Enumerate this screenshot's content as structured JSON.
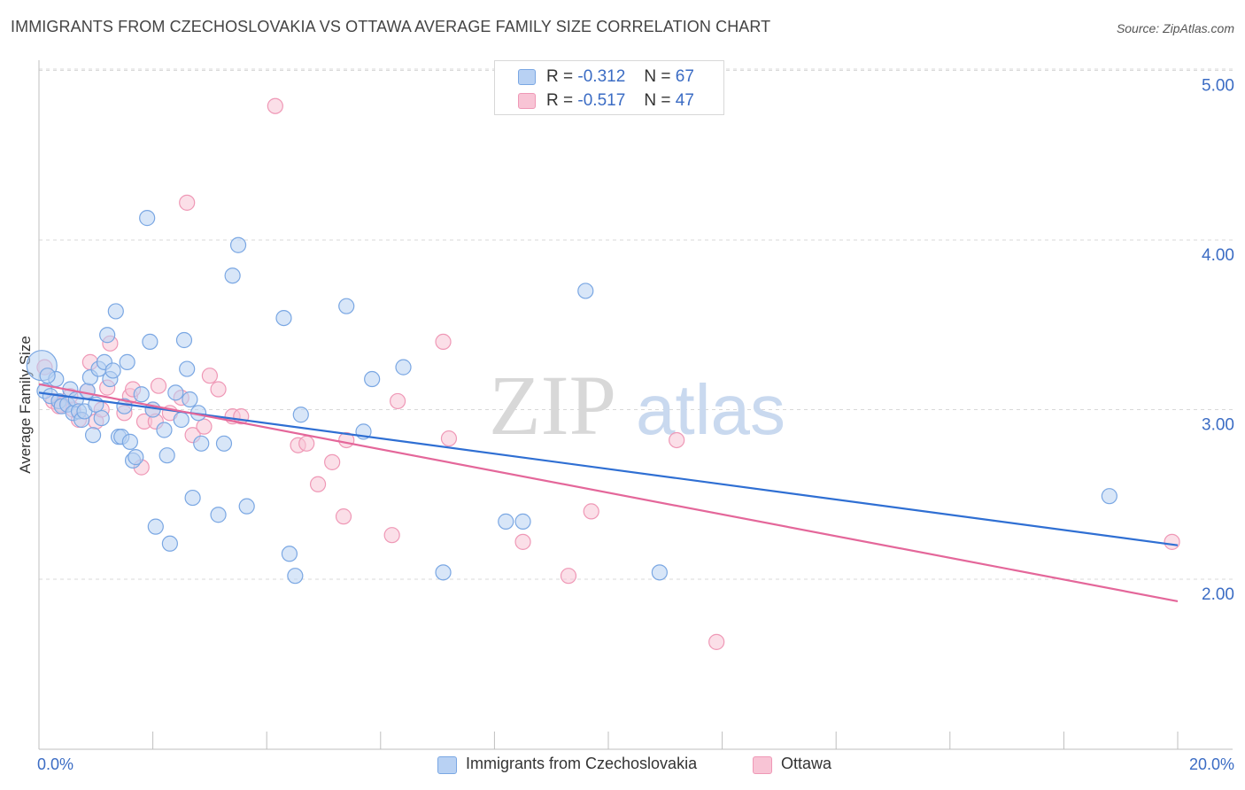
{
  "title": "IMMIGRANTS FROM CZECHOSLOVAKIA VS OTTAWA AVERAGE FAMILY SIZE CORRELATION CHART",
  "source": "Source: ZipAtlas.com",
  "watermark": {
    "zip": "ZIP",
    "atlas": "atlas"
  },
  "legend": {
    "rows": [
      {
        "r_label": "R =",
        "r_value": "-0.312",
        "n_label": "N =",
        "n_value": "67"
      },
      {
        "r_label": "R =",
        "r_value": "-0.517",
        "n_label": "N =",
        "n_value": "47"
      }
    ]
  },
  "colors": {
    "blue_fill": "#b8d1f3",
    "blue_stroke": "#7aa7e3",
    "blue_line": "#2f6fd3",
    "pink_fill": "#f8c4d5",
    "pink_stroke": "#ef98b6",
    "pink_line": "#e4679a",
    "accent_text": "#3b6cc4",
    "grid": "#d9d9d9"
  },
  "chart_data": {
    "type": "scatter",
    "title": "IMMIGRANTS FROM CZECHOSLOVAKIA VS OTTAWA AVERAGE FAMILY SIZE CORRELATION CHART",
    "xlabel": "",
    "ylabel": "Average Family Size",
    "xlim": [
      0,
      20
    ],
    "ylim": [
      1.0,
      5.1
    ],
    "x_tick_labels": [
      "0.0%",
      "20.0%"
    ],
    "y_ticks": [
      2.0,
      3.0,
      4.0,
      5.0
    ],
    "y_tick_labels": [
      "2.00",
      "3.00",
      "4.00",
      "5.00"
    ],
    "grid": true,
    "legend_position": "top-center",
    "series": [
      {
        "name": "Immigrants from Czechoslovakia",
        "color": "#7aa7e3",
        "trend": {
          "x": [
            0,
            20
          ],
          "y": [
            3.1,
            2.2
          ]
        },
        "points": [
          {
            "x": 0.05,
            "y": 3.26,
            "big": true
          },
          {
            "x": 0.1,
            "y": 3.11
          },
          {
            "x": 0.2,
            "y": 3.08
          },
          {
            "x": 0.3,
            "y": 3.18
          },
          {
            "x": 0.35,
            "y": 3.05
          },
          {
            "x": 0.4,
            "y": 3.02
          },
          {
            "x": 0.5,
            "y": 3.03
          },
          {
            "x": 0.55,
            "y": 3.12
          },
          {
            "x": 0.6,
            "y": 2.98
          },
          {
            "x": 0.65,
            "y": 3.06
          },
          {
            "x": 0.7,
            "y": 2.99
          },
          {
            "x": 0.75,
            "y": 2.94
          },
          {
            "x": 0.8,
            "y": 2.99
          },
          {
            "x": 0.85,
            "y": 3.11
          },
          {
            "x": 0.9,
            "y": 3.19
          },
          {
            "x": 0.95,
            "y": 2.85
          },
          {
            "x": 1.0,
            "y": 3.03
          },
          {
            "x": 1.05,
            "y": 3.24
          },
          {
            "x": 1.1,
            "y": 2.95
          },
          {
            "x": 1.15,
            "y": 3.28
          },
          {
            "x": 1.2,
            "y": 3.44
          },
          {
            "x": 1.25,
            "y": 3.18
          },
          {
            "x": 1.3,
            "y": 3.23
          },
          {
            "x": 1.35,
            "y": 3.58
          },
          {
            "x": 1.4,
            "y": 2.84
          },
          {
            "x": 1.45,
            "y": 2.84
          },
          {
            "x": 1.5,
            "y": 3.02
          },
          {
            "x": 1.55,
            "y": 3.28
          },
          {
            "x": 1.6,
            "y": 2.81
          },
          {
            "x": 1.65,
            "y": 2.7
          },
          {
            "x": 1.7,
            "y": 2.72
          },
          {
            "x": 1.8,
            "y": 3.09
          },
          {
            "x": 1.9,
            "y": 4.13
          },
          {
            "x": 1.95,
            "y": 3.4
          },
          {
            "x": 2.0,
            "y": 3.0
          },
          {
            "x": 2.05,
            "y": 2.31
          },
          {
            "x": 2.2,
            "y": 2.88
          },
          {
            "x": 2.25,
            "y": 2.73
          },
          {
            "x": 2.3,
            "y": 2.21
          },
          {
            "x": 2.4,
            "y": 3.1
          },
          {
            "x": 2.5,
            "y": 2.94
          },
          {
            "x": 2.55,
            "y": 3.41
          },
          {
            "x": 2.6,
            "y": 3.24
          },
          {
            "x": 2.65,
            "y": 3.06
          },
          {
            "x": 2.7,
            "y": 2.48
          },
          {
            "x": 2.8,
            "y": 2.98
          },
          {
            "x": 2.85,
            "y": 2.8
          },
          {
            "x": 3.15,
            "y": 2.38
          },
          {
            "x": 3.25,
            "y": 2.8
          },
          {
            "x": 3.4,
            "y": 3.79
          },
          {
            "x": 3.5,
            "y": 3.97
          },
          {
            "x": 3.65,
            "y": 2.43
          },
          {
            "x": 4.3,
            "y": 3.54
          },
          {
            "x": 4.4,
            "y": 2.15
          },
          {
            "x": 4.5,
            "y": 2.02
          },
          {
            "x": 4.6,
            "y": 2.97
          },
          {
            "x": 5.4,
            "y": 3.61
          },
          {
            "x": 5.7,
            "y": 2.87
          },
          {
            "x": 5.85,
            "y": 3.18
          },
          {
            "x": 6.4,
            "y": 3.25
          },
          {
            "x": 7.1,
            "y": 2.04
          },
          {
            "x": 8.2,
            "y": 2.34
          },
          {
            "x": 8.5,
            "y": 2.34
          },
          {
            "x": 9.6,
            "y": 3.7
          },
          {
            "x": 10.9,
            "y": 2.04
          },
          {
            "x": 18.8,
            "y": 2.49
          },
          {
            "x": 0.15,
            "y": 3.2
          }
        ]
      },
      {
        "name": "Ottawa",
        "color": "#ef98b6",
        "trend": {
          "x": [
            0,
            20
          ],
          "y": [
            3.15,
            1.87
          ]
        },
        "points": [
          {
            "x": 0.1,
            "y": 3.25
          },
          {
            "x": 0.25,
            "y": 3.05
          },
          {
            "x": 0.4,
            "y": 3.03
          },
          {
            "x": 0.55,
            "y": 3.08
          },
          {
            "x": 0.7,
            "y": 2.94
          },
          {
            "x": 0.85,
            "y": 3.11
          },
          {
            "x": 0.9,
            "y": 3.28
          },
          {
            "x": 1.0,
            "y": 2.93
          },
          {
            "x": 1.1,
            "y": 3.0
          },
          {
            "x": 1.2,
            "y": 3.13
          },
          {
            "x": 1.25,
            "y": 3.39
          },
          {
            "x": 1.5,
            "y": 2.98
          },
          {
            "x": 1.6,
            "y": 3.08
          },
          {
            "x": 1.65,
            "y": 3.12
          },
          {
            "x": 1.8,
            "y": 2.66
          },
          {
            "x": 1.85,
            "y": 2.93
          },
          {
            "x": 2.0,
            "y": 3.0
          },
          {
            "x": 2.05,
            "y": 2.93
          },
          {
            "x": 2.1,
            "y": 3.14
          },
          {
            "x": 2.3,
            "y": 2.98
          },
          {
            "x": 2.5,
            "y": 3.07
          },
          {
            "x": 2.6,
            "y": 4.22
          },
          {
            "x": 2.7,
            "y": 2.85
          },
          {
            "x": 2.9,
            "y": 2.9
          },
          {
            "x": 3.0,
            "y": 3.2
          },
          {
            "x": 3.15,
            "y": 3.12
          },
          {
            "x": 3.4,
            "y": 2.96
          },
          {
            "x": 3.55,
            "y": 2.96
          },
          {
            "x": 4.15,
            "y": 4.79
          },
          {
            "x": 4.55,
            "y": 2.79
          },
          {
            "x": 4.7,
            "y": 2.8
          },
          {
            "x": 4.9,
            "y": 2.56
          },
          {
            "x": 5.15,
            "y": 2.69
          },
          {
            "x": 5.35,
            "y": 2.37
          },
          {
            "x": 5.4,
            "y": 2.82
          },
          {
            "x": 6.2,
            "y": 2.26
          },
          {
            "x": 6.3,
            "y": 3.05
          },
          {
            "x": 7.1,
            "y": 3.4
          },
          {
            "x": 7.2,
            "y": 2.83
          },
          {
            "x": 8.5,
            "y": 2.22
          },
          {
            "x": 9.3,
            "y": 2.02
          },
          {
            "x": 9.7,
            "y": 2.4
          },
          {
            "x": 11.2,
            "y": 2.82
          },
          {
            "x": 11.9,
            "y": 1.63
          },
          {
            "x": 19.9,
            "y": 2.22
          },
          {
            "x": 0.35,
            "y": 3.02
          },
          {
            "x": 0.6,
            "y": 3.0
          }
        ]
      }
    ]
  },
  "bottom_legend": {
    "items": [
      {
        "label": "Immigrants from Czechoslovakia"
      },
      {
        "label": "Ottawa"
      }
    ]
  }
}
